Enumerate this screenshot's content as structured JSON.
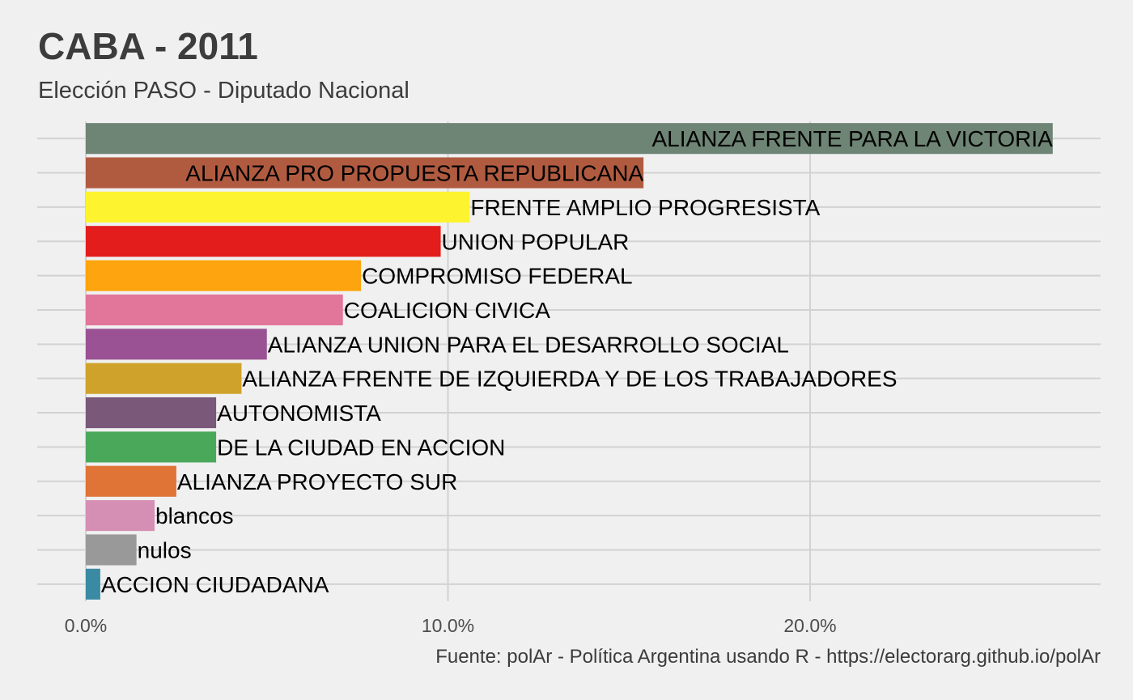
{
  "header": {
    "title": "CABA - 2011",
    "subtitle": "Elección PASO - Diputado Nacional"
  },
  "caption": "Fuente: polAr - Política Argentina usando R - https://electorarg.github.io/polAr",
  "chart_data": {
    "type": "bar",
    "orientation": "horizontal",
    "title": "CABA - 2011",
    "subtitle": "Elección PASO - Diputado Nacional",
    "xlim": [
      0,
      28
    ],
    "x_ticks": [
      0,
      10,
      20
    ],
    "x_tick_labels": [
      "0.0%",
      "10.0%",
      "20.0%"
    ],
    "grid": true,
    "legend": "none",
    "categories": [
      "ALIANZA FRENTE PARA LA VICTORIA",
      "ALIANZA PRO PROPUESTA REPUBLICANA",
      "FRENTE AMPLIO PROGRESISTA",
      "UNION POPULAR",
      "COMPROMISO FEDERAL",
      "COALICION CIVICA",
      "ALIANZA UNION PARA EL DESARROLLO SOCIAL",
      "ALIANZA FRENTE DE IZQUIERDA Y DE LOS TRABAJADORES",
      "AUTONOMISTA",
      "DE LA CIUDAD EN ACCION",
      "ALIANZA PROYECTO SUR",
      "blancos",
      "nulos",
      "ACCION CIUDADANA"
    ],
    "values": [
      26.7,
      15.4,
      10.6,
      9.8,
      7.6,
      7.1,
      5.0,
      4.3,
      3.6,
      3.6,
      2.5,
      1.9,
      1.4,
      0.4
    ],
    "colors": [
      "#6e8474",
      "#b05b40",
      "#fdf42f",
      "#e31d1c",
      "#fda40e",
      "#e2769a",
      "#9b5294",
      "#cfa22b",
      "#795879",
      "#4aa85b",
      "#e07336",
      "#d68fb4",
      "#999999",
      "#3a8aa3"
    ]
  }
}
